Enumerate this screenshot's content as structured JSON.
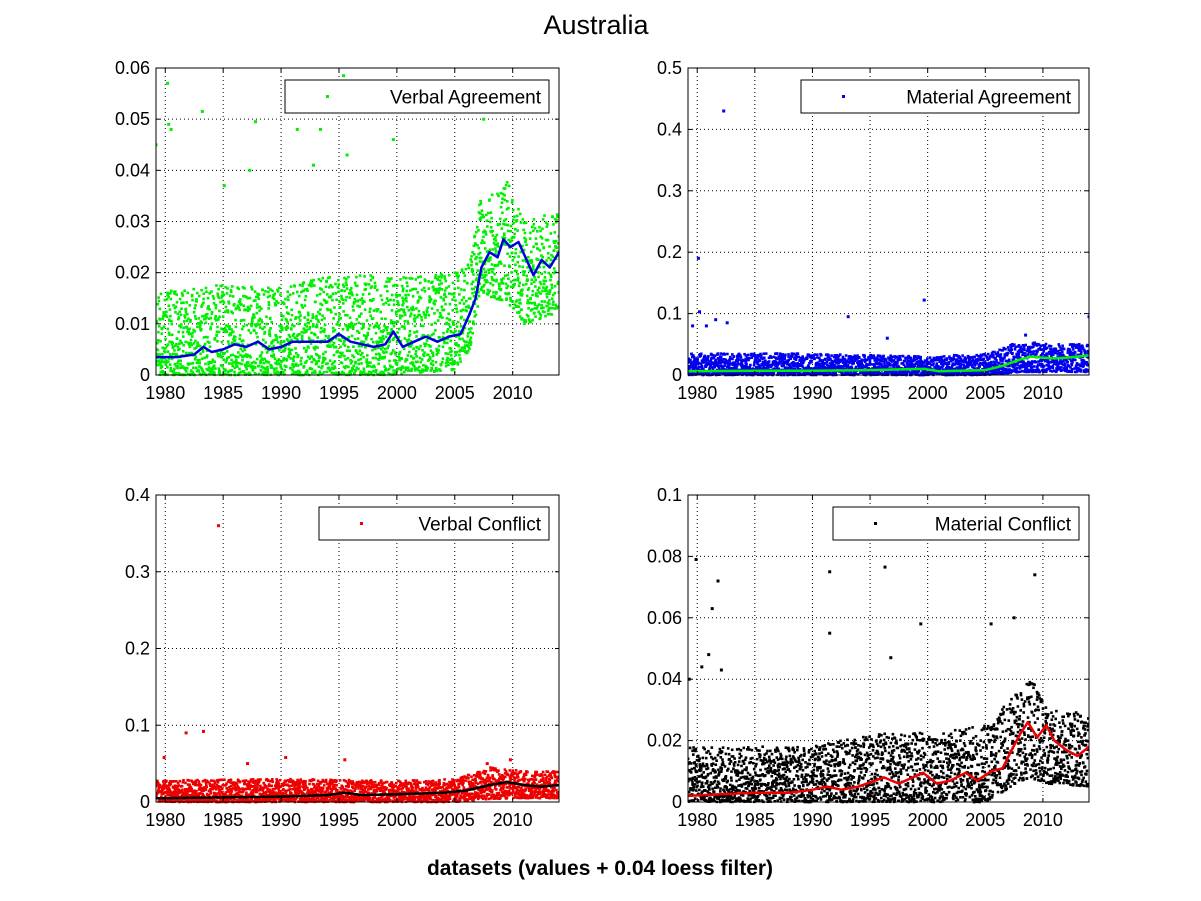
{
  "figure": {
    "title": "Australia",
    "xlabel": "datasets (values + 0.04 loess filter)"
  },
  "chart_data": [
    {
      "type": "scatter",
      "id": "verbal-agreement",
      "xlim": [
        1979.2,
        2014.0
      ],
      "ylim": [
        0,
        0.06
      ],
      "xticks": [
        1980,
        1985,
        1990,
        1995,
        2000,
        2005,
        2010
      ],
      "yticks": [
        0,
        0.01,
        0.02,
        0.03,
        0.04,
        0.05,
        0.06
      ],
      "ytick_labels": [
        "0",
        "0.01",
        "0.02",
        "0.03",
        "0.04",
        "0.05",
        "0.06"
      ],
      "grid": true,
      "legend": {
        "label": "Verbal Agreement",
        "position": "top-right"
      },
      "point_color": "#00ee00",
      "line_color": "#0000dd",
      "point_band": [
        {
          "x": 1979.2,
          "lo": 0.0,
          "hi": 0.016
        },
        {
          "x": 1985,
          "lo": 0.0,
          "hi": 0.018
        },
        {
          "x": 1990,
          "lo": 0.0,
          "hi": 0.017
        },
        {
          "x": 1995,
          "lo": 0.0,
          "hi": 0.02
        },
        {
          "x": 2000,
          "lo": 0.0,
          "hi": 0.019
        },
        {
          "x": 2005,
          "lo": 0.001,
          "hi": 0.02
        },
        {
          "x": 2006.3,
          "lo": 0.005,
          "hi": 0.022
        },
        {
          "x": 2007.2,
          "lo": 0.016,
          "hi": 0.035
        },
        {
          "x": 2009.5,
          "lo": 0.014,
          "hi": 0.038
        },
        {
          "x": 2011,
          "lo": 0.01,
          "hi": 0.03
        },
        {
          "x": 2014.0,
          "lo": 0.012,
          "hi": 0.032
        }
      ],
      "outliers": [
        {
          "x": 1979.2,
          "y": 0.045
        },
        {
          "x": 1980.2,
          "y": 0.057
        },
        {
          "x": 1980.3,
          "y": 0.049
        },
        {
          "x": 1980.5,
          "y": 0.048
        },
        {
          "x": 1983.2,
          "y": 0.0515
        },
        {
          "x": 1987.8,
          "y": 0.0495
        },
        {
          "x": 1991.4,
          "y": 0.048
        },
        {
          "x": 1993.4,
          "y": 0.048
        },
        {
          "x": 1995.4,
          "y": 0.0585
        },
        {
          "x": 1995.7,
          "y": 0.043
        },
        {
          "x": 1999.7,
          "y": 0.046
        },
        {
          "x": 1992.8,
          "y": 0.041
        },
        {
          "x": 1985.1,
          "y": 0.037
        },
        {
          "x": 1987.3,
          "y": 0.04
        },
        {
          "x": 2007.5,
          "y": 0.05
        }
      ],
      "trend": {
        "x": [
          1979.2,
          1981,
          1982.5,
          1983.3,
          1984,
          1985,
          1986,
          1987,
          1988,
          1989,
          1990,
          1991,
          1992,
          1993,
          1994,
          1995,
          1996,
          1997,
          1998,
          1999,
          1999.7,
          2000.5,
          2001.5,
          2002.5,
          2003.5,
          2004.5,
          2005.5,
          2006.3,
          2006.8,
          2007.3,
          2008,
          2008.7,
          2009.2,
          2009.8,
          2010.5,
          2011.2,
          2011.8,
          2012.5,
          2013.2,
          2014.0
        ],
        "y": [
          0.0035,
          0.0035,
          0.004,
          0.0055,
          0.0045,
          0.005,
          0.006,
          0.0055,
          0.0065,
          0.005,
          0.0055,
          0.0065,
          0.0065,
          0.0065,
          0.0065,
          0.008,
          0.0065,
          0.006,
          0.0055,
          0.006,
          0.0085,
          0.0055,
          0.0065,
          0.0075,
          0.0065,
          0.0075,
          0.008,
          0.012,
          0.015,
          0.021,
          0.024,
          0.023,
          0.0265,
          0.025,
          0.026,
          0.0225,
          0.0195,
          0.0225,
          0.021,
          0.024
        ]
      }
    },
    {
      "type": "scatter",
      "id": "material-agreement",
      "xlim": [
        1979.2,
        2014.0
      ],
      "ylim": [
        0,
        0.5
      ],
      "xticks": [
        1980,
        1985,
        1990,
        1995,
        2000,
        2005,
        2010
      ],
      "yticks": [
        0,
        0.1,
        0.2,
        0.3,
        0.4,
        0.5
      ],
      "ytick_labels": [
        "0",
        "0.1",
        "0.2",
        "0.3",
        "0.4",
        "0.5"
      ],
      "grid": true,
      "legend": {
        "label": "Material Agreement",
        "position": "top-right"
      },
      "point_color": "#0000ee",
      "line_color": "#00ee00",
      "point_band": [
        {
          "x": 1979.2,
          "lo": 0.0,
          "hi": 0.035
        },
        {
          "x": 1990,
          "lo": 0.0,
          "hi": 0.035
        },
        {
          "x": 2000,
          "lo": 0.0,
          "hi": 0.03
        },
        {
          "x": 2005,
          "lo": 0.0,
          "hi": 0.035
        },
        {
          "x": 2008,
          "lo": 0.005,
          "hi": 0.055
        },
        {
          "x": 2011,
          "lo": 0.005,
          "hi": 0.05
        },
        {
          "x": 2014.0,
          "lo": 0.005,
          "hi": 0.05
        }
      ],
      "outliers": [
        {
          "x": 1980.1,
          "y": 0.19
        },
        {
          "x": 1982.3,
          "y": 0.43
        },
        {
          "x": 1999.7,
          "y": 0.122
        },
        {
          "x": 1980.2,
          "y": 0.103
        },
        {
          "x": 1981.6,
          "y": 0.09
        },
        {
          "x": 1982.6,
          "y": 0.085
        },
        {
          "x": 1979.6,
          "y": 0.08
        },
        {
          "x": 1993.1,
          "y": 0.095
        },
        {
          "x": 2014.0,
          "y": 0.095
        },
        {
          "x": 1980.8,
          "y": 0.08
        },
        {
          "x": 1996.5,
          "y": 0.06
        },
        {
          "x": 2008.5,
          "y": 0.065
        }
      ],
      "trend": {
        "x": [
          1979.2,
          1985,
          1990,
          1995,
          1999.7,
          2001,
          2005,
          2006.5,
          2008,
          2009,
          2010,
          2011,
          2012,
          2013,
          2014.0
        ],
        "y": [
          0.006,
          0.007,
          0.007,
          0.008,
          0.01,
          0.006,
          0.008,
          0.015,
          0.025,
          0.03,
          0.028,
          0.027,
          0.028,
          0.03,
          0.032
        ]
      }
    },
    {
      "type": "scatter",
      "id": "verbal-conflict",
      "xlim": [
        1979.2,
        2014.0
      ],
      "ylim": [
        0,
        0.4
      ],
      "xticks": [
        1980,
        1985,
        1990,
        1995,
        2000,
        2005,
        2010
      ],
      "yticks": [
        0,
        0.1,
        0.2,
        0.3,
        0.4
      ],
      "ytick_labels": [
        "0",
        "0.1",
        "0.2",
        "0.3",
        "0.4"
      ],
      "grid": true,
      "legend": {
        "label": "Verbal Conflict",
        "position": "top-right"
      },
      "point_color": "#ee0000",
      "line_color": "#000000",
      "point_band": [
        {
          "x": 1979.2,
          "lo": 0.0,
          "hi": 0.028
        },
        {
          "x": 1990,
          "lo": 0.0,
          "hi": 0.03
        },
        {
          "x": 2000,
          "lo": 0.0,
          "hi": 0.028
        },
        {
          "x": 2005,
          "lo": 0.0,
          "hi": 0.03
        },
        {
          "x": 2008,
          "lo": 0.004,
          "hi": 0.045
        },
        {
          "x": 2011,
          "lo": 0.005,
          "hi": 0.04
        },
        {
          "x": 2014.0,
          "lo": 0.005,
          "hi": 0.04
        }
      ],
      "outliers": [
        {
          "x": 1984.6,
          "y": 0.36
        },
        {
          "x": 1981.8,
          "y": 0.09
        },
        {
          "x": 1983.3,
          "y": 0.092
        },
        {
          "x": 1979.9,
          "y": 0.058
        },
        {
          "x": 1990.4,
          "y": 0.058
        },
        {
          "x": 1995.5,
          "y": 0.055
        },
        {
          "x": 1987.1,
          "y": 0.05
        },
        {
          "x": 2009.8,
          "y": 0.055
        },
        {
          "x": 2007.8,
          "y": 0.05
        }
      ],
      "trend": {
        "x": [
          1979.2,
          1985,
          1990,
          1994,
          1995.5,
          1997,
          2000,
          2004,
          2006,
          2008,
          2009.5,
          2011,
          2012.5,
          2014.0
        ],
        "y": [
          0.005,
          0.006,
          0.007,
          0.009,
          0.012,
          0.009,
          0.01,
          0.012,
          0.015,
          0.022,
          0.026,
          0.022,
          0.02,
          0.022
        ]
      }
    },
    {
      "type": "scatter",
      "id": "material-conflict",
      "xlim": [
        1979.2,
        2014.0
      ],
      "ylim": [
        0,
        0.1
      ],
      "xticks": [
        1980,
        1985,
        1990,
        1995,
        2000,
        2005,
        2010
      ],
      "yticks": [
        0,
        0.02,
        0.04,
        0.06,
        0.08,
        0.1
      ],
      "ytick_labels": [
        "0",
        "0.02",
        "0.04",
        "0.06",
        "0.08",
        "0.1"
      ],
      "grid": true,
      "legend": {
        "label": "Material Conflict",
        "position": "top-right"
      },
      "point_color": "#000000",
      "line_color": "#ee0000",
      "point_band": [
        {
          "x": 1979.2,
          "lo": 0.0,
          "hi": 0.018
        },
        {
          "x": 1985,
          "lo": 0.0,
          "hi": 0.018
        },
        {
          "x": 1990,
          "lo": 0.0,
          "hi": 0.018
        },
        {
          "x": 1995,
          "lo": 0.0,
          "hi": 0.022
        },
        {
          "x": 2000,
          "lo": 0.0,
          "hi": 0.023
        },
        {
          "x": 2005,
          "lo": 0.0,
          "hi": 0.025
        },
        {
          "x": 2006.8,
          "lo": 0.004,
          "hi": 0.032
        },
        {
          "x": 2008.8,
          "lo": 0.008,
          "hi": 0.042
        },
        {
          "x": 2010.5,
          "lo": 0.006,
          "hi": 0.03
        },
        {
          "x": 2014.0,
          "lo": 0.005,
          "hi": 0.03
        }
      ],
      "outliers": [
        {
          "x": 1979.9,
          "y": 0.079
        },
        {
          "x": 1981.8,
          "y": 0.072
        },
        {
          "x": 1981.3,
          "y": 0.063
        },
        {
          "x": 1991.5,
          "y": 0.075
        },
        {
          "x": 1996.3,
          "y": 0.0765
        },
        {
          "x": 2009.3,
          "y": 0.074
        },
        {
          "x": 1991.5,
          "y": 0.055
        },
        {
          "x": 1999.4,
          "y": 0.058
        },
        {
          "x": 2005.5,
          "y": 0.058
        },
        {
          "x": 2007.5,
          "y": 0.06
        },
        {
          "x": 1981,
          "y": 0.048
        },
        {
          "x": 1980.4,
          "y": 0.044
        },
        {
          "x": 1982.1,
          "y": 0.043
        },
        {
          "x": 1979.3,
          "y": 0.04
        },
        {
          "x": 1996.8,
          "y": 0.047
        }
      ],
      "trend": {
        "x": [
          1979.2,
          1982,
          1985,
          1988,
          1990,
          1991.3,
          1992.5,
          1994,
          1996.2,
          1997.5,
          1999.6,
          2000.8,
          2002,
          2003.3,
          2004.3,
          2005.5,
          2006.5,
          2007.3,
          2008,
          2008.7,
          2009.5,
          2010.3,
          2011,
          2012,
          2013,
          2014.0
        ],
        "y": [
          0.002,
          0.0025,
          0.003,
          0.003,
          0.004,
          0.005,
          0.004,
          0.005,
          0.008,
          0.006,
          0.0095,
          0.006,
          0.007,
          0.0095,
          0.007,
          0.01,
          0.011,
          0.017,
          0.022,
          0.026,
          0.021,
          0.025,
          0.02,
          0.017,
          0.015,
          0.018
        ]
      }
    }
  ]
}
